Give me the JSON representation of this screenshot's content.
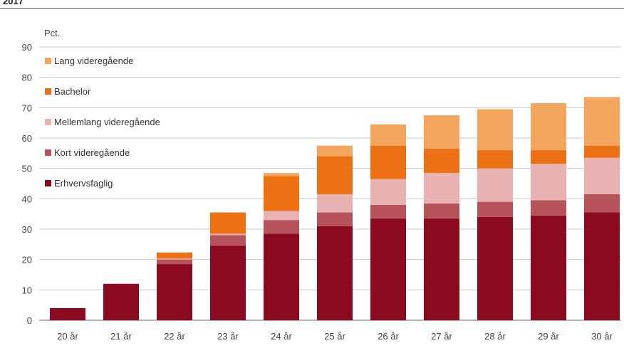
{
  "header": {
    "year": "2017"
  },
  "chart_data": {
    "type": "bar",
    "stacked": true,
    "ylabel": "Pct.",
    "ylim": [
      0,
      90
    ],
    "yticks": [
      0,
      10,
      20,
      30,
      40,
      50,
      60,
      70,
      80,
      90
    ],
    "grid": true,
    "legend_position": "top-left",
    "categories": [
      "20 år",
      "21 år",
      "22 år",
      "23 år",
      "24 år",
      "25 år",
      "26 år",
      "27 år",
      "28 år",
      "29 år",
      "30 år"
    ],
    "series": [
      {
        "name": "Erhvervsfaglig",
        "color": "#8b0a1f",
        "values": [
          4,
          12,
          18.5,
          24.5,
          28.5,
          31,
          33.5,
          33.5,
          34,
          34.5,
          35.5
        ]
      },
      {
        "name": "Kort videregående",
        "color": "#b5525a",
        "values": [
          0,
          0,
          1.5,
          3.5,
          4.5,
          4.5,
          4.5,
          5,
          5,
          5,
          6
        ]
      },
      {
        "name": "Mellemlang videregående",
        "color": "#e8b2b2",
        "values": [
          0,
          0,
          0.3,
          0.5,
          3,
          6,
          8.5,
          10,
          11,
          12,
          12
        ]
      },
      {
        "name": "Bachelor",
        "color": "#ec7014",
        "values": [
          0,
          0,
          2,
          7,
          11.5,
          12.5,
          11,
          8,
          6,
          4.5,
          4
        ]
      },
      {
        "name": "Lang videregående",
        "color": "#f4a55e",
        "values": [
          0,
          0,
          0,
          0,
          1,
          3.5,
          7,
          11,
          13.5,
          15.5,
          16
        ]
      }
    ],
    "legend_order": [
      "Lang videregående",
      "Bachelor",
      "Mellemlang videregående",
      "Kort videregående",
      "Erhvervsfaglig"
    ]
  }
}
